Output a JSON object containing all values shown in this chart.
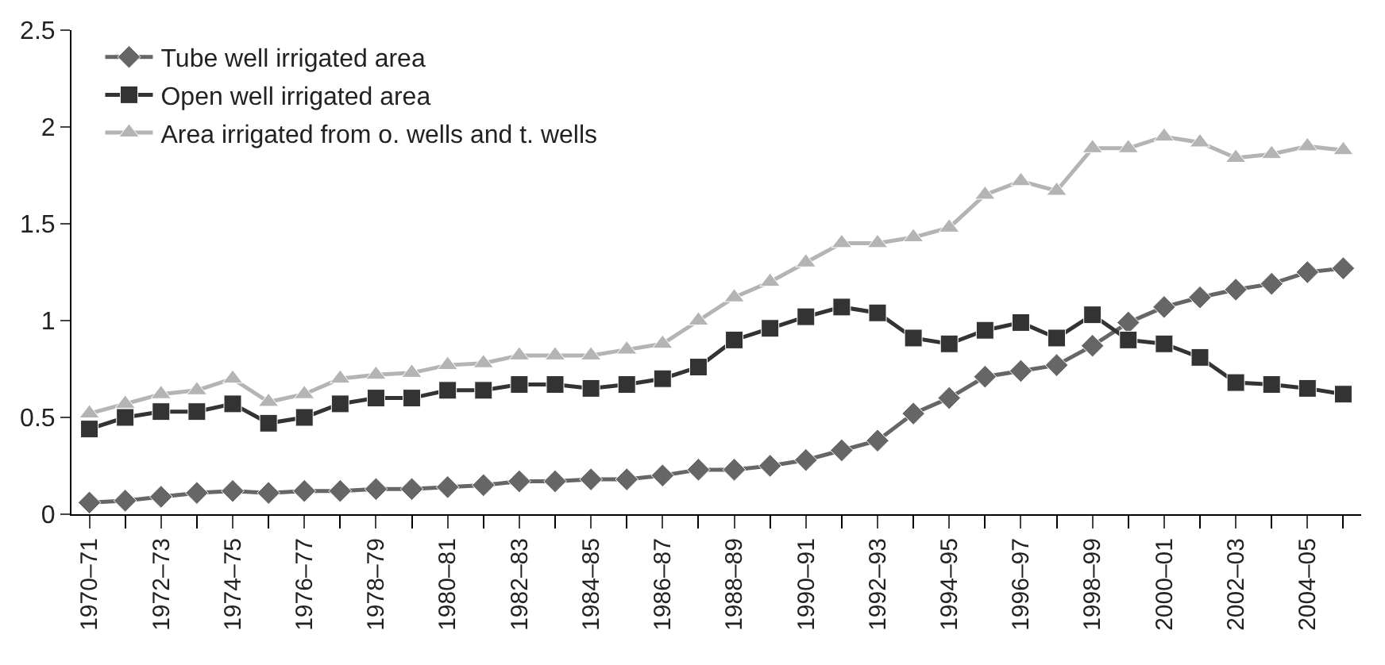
{
  "chart_data": {
    "type": "line",
    "categories": [
      "1970–71",
      null,
      "1972–73",
      null,
      "1974–75",
      null,
      "1976–77",
      null,
      "1978–79",
      null,
      "1980–81",
      null,
      "1982–83",
      null,
      "1984–85",
      null,
      "1986–87",
      null,
      "1988–89",
      null,
      "1990–91",
      null,
      "1992–93",
      null,
      "1994–95",
      null,
      "1996–97",
      null,
      "1998–99",
      null,
      "2000–01",
      null,
      "2002–03",
      null,
      "2004–05",
      null
    ],
    "series": [
      {
        "name": "Tube well irrigated area",
        "color": "#666666",
        "marker": "diamond",
        "values": [
          0.06,
          0.07,
          0.09,
          0.11,
          0.12,
          0.11,
          0.12,
          0.12,
          0.13,
          0.13,
          0.14,
          0.15,
          0.17,
          0.17,
          0.18,
          0.18,
          0.2,
          0.23,
          0.23,
          0.25,
          0.28,
          0.33,
          0.38,
          0.52,
          0.6,
          0.71,
          0.74,
          0.77,
          0.87,
          0.99,
          1.07,
          1.12,
          1.16,
          1.19,
          1.25,
          1.27
        ]
      },
      {
        "name": "Open well irrigated area",
        "color": "#333333",
        "marker": "square",
        "values": [
          0.44,
          0.5,
          0.53,
          0.53,
          0.57,
          0.47,
          0.5,
          0.57,
          0.6,
          0.6,
          0.64,
          0.64,
          0.67,
          0.67,
          0.65,
          0.67,
          0.7,
          0.76,
          0.9,
          0.96,
          1.02,
          1.07,
          1.04,
          0.91,
          0.88,
          0.95,
          0.99,
          0.91,
          1.03,
          0.9,
          0.88,
          0.81,
          0.68,
          0.67,
          0.65,
          0.62
        ]
      },
      {
        "name": "Area irrigated from o. wells and t. wells",
        "color": "#b4b4b4",
        "marker": "triangle",
        "values": [
          0.52,
          0.57,
          0.62,
          0.64,
          0.7,
          0.58,
          0.62,
          0.7,
          0.72,
          0.73,
          0.77,
          0.78,
          0.82,
          0.82,
          0.82,
          0.85,
          0.88,
          1.0,
          1.12,
          1.2,
          1.3,
          1.4,
          1.4,
          1.43,
          1.48,
          1.65,
          1.72,
          1.67,
          1.89,
          1.89,
          1.95,
          1.92,
          1.84,
          1.86,
          1.9,
          1.88
        ]
      }
    ],
    "ylim": [
      0,
      2.5
    ],
    "yticks": [
      0,
      0.5,
      1,
      1.5,
      2,
      2.5
    ],
    "legend": "top left",
    "line_style": "solid"
  }
}
